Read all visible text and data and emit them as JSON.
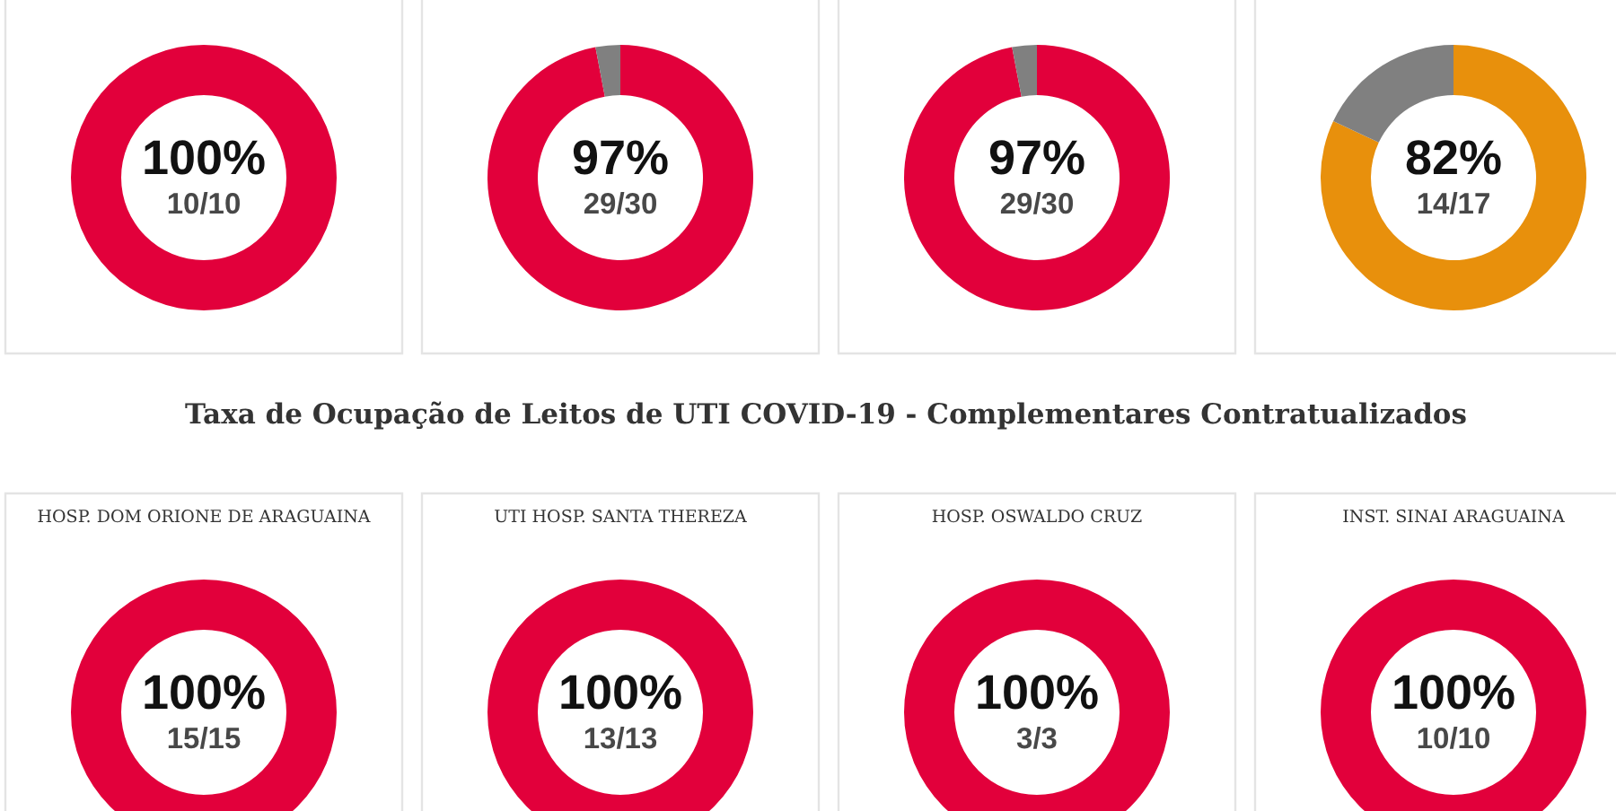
{
  "chart_data": [
    {
      "type": "donut",
      "categories": [
        null
      ],
      "values": [
        100
      ],
      "colors": [
        "#e2003b"
      ],
      "annotations": [
        "100%",
        "10/10"
      ]
    },
    {
      "type": "donut",
      "categories": [
        null,
        null
      ],
      "values": [
        97,
        3
      ],
      "colors": [
        "#e2003b",
        "#808080"
      ],
      "annotations": [
        "97%",
        "29/30"
      ]
    },
    {
      "type": "donut",
      "categories": [
        null,
        null
      ],
      "values": [
        97,
        3
      ],
      "colors": [
        "#e2003b",
        "#808080"
      ],
      "annotations": [
        "97%",
        "29/30"
      ]
    },
    {
      "type": "donut",
      "categories": [
        null,
        null
      ],
      "values": [
        82,
        18
      ],
      "colors": [
        "#e8900c",
        "#808080"
      ],
      "annotations": [
        "82%",
        "14/17"
      ]
    },
    {
      "type": "other",
      "title": "Taxa de Ocupação de Leitos de UTI COVID-19 - Complementares Contratualizados"
    },
    {
      "type": "donut",
      "title": "HOSP. DOM ORIONE DE ARAGUAINA",
      "categories": [
        null
      ],
      "values": [
        100
      ],
      "colors": [
        "#e2003b"
      ],
      "annotations": [
        "100%",
        "15/15"
      ]
    },
    {
      "type": "donut",
      "title": "UTI HOSP. SANTA THEREZA",
      "categories": [
        null
      ],
      "values": [
        100
      ],
      "colors": [
        "#e2003b"
      ],
      "annotations": [
        "100%",
        "13/13"
      ]
    },
    {
      "type": "donut",
      "title": "HOSP. OSWALDO CRUZ",
      "categories": [
        null
      ],
      "values": [
        100
      ],
      "colors": [
        "#e2003b"
      ],
      "annotations": [
        "100%",
        "3/3"
      ]
    },
    {
      "type": "donut",
      "title": "INST. SINAI ARAGUAINA",
      "categories": [
        null
      ],
      "values": [
        100
      ],
      "colors": [
        "#e2003b"
      ],
      "annotations": [
        "100%",
        "10/10"
      ]
    }
  ]
}
